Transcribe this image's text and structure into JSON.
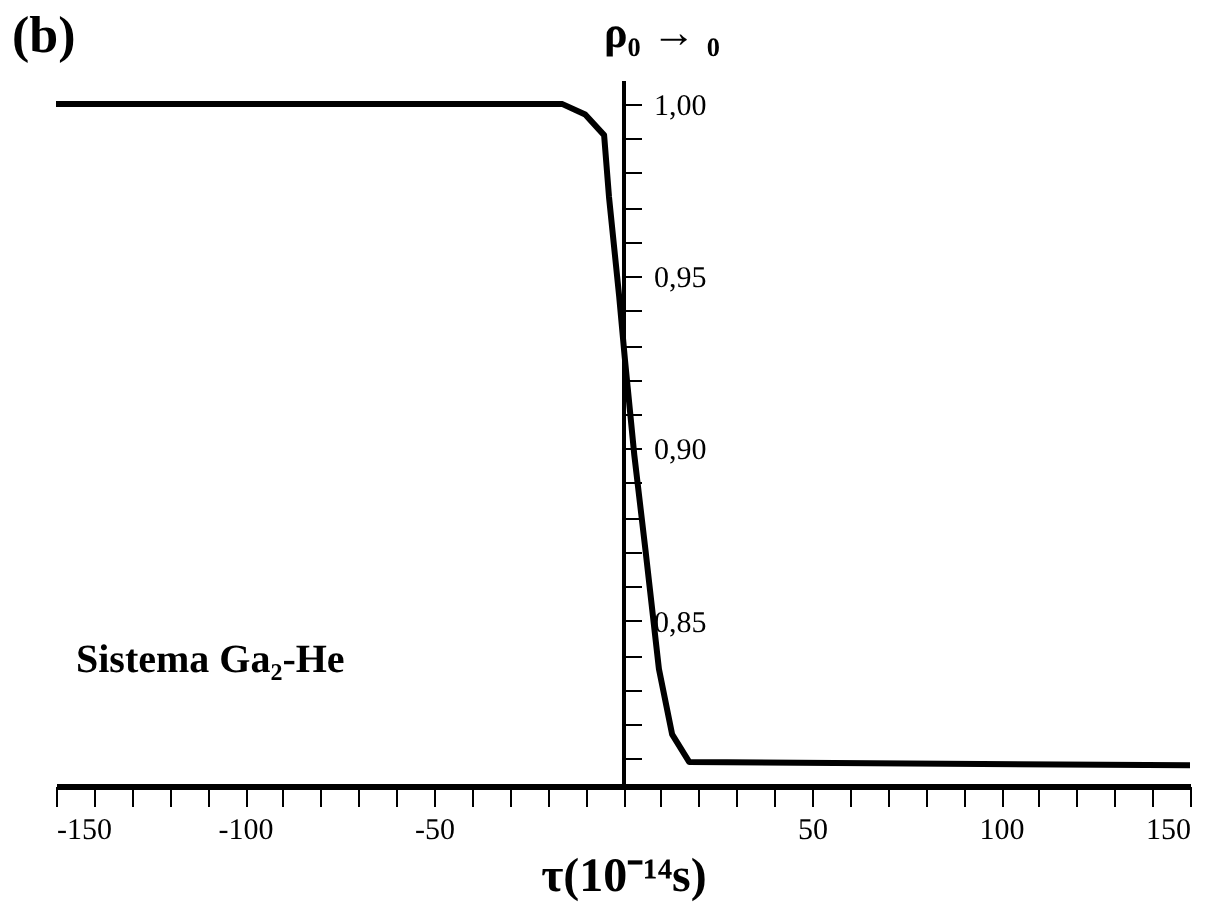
{
  "chart_data": {
    "type": "line",
    "title": "(b)",
    "xlabel": "τ(10⁻¹⁴s)",
    "ylabel": "ρ₀ → ₀",
    "annotations": [
      "Sistema Ga₂-He"
    ],
    "x": [
      -150,
      -16,
      -10,
      -5,
      -3.7,
      -1,
      0.5,
      3,
      6,
      9.5,
      13,
      17.5,
      150
    ],
    "series": [
      {
        "color": "#000000",
        "values": [
          1.0,
          1.0,
          0.997,
          0.991,
          0.973,
          0.944,
          0.926,
          0.898,
          0.87,
          0.836,
          0.817,
          0.809,
          0.808
        ]
      }
    ],
    "xlim": [
      -150,
      150
    ],
    "ylim": [
      0.802,
      1.007
    ],
    "xticks": [
      -150,
      {
        "value": -140,
        "label": null
      },
      {
        "value": -130,
        "label": null
      },
      {
        "value": -120,
        "label": null
      },
      {
        "value": -110,
        "label": null
      },
      -100,
      {
        "value": -90,
        "label": null
      },
      {
        "value": -80,
        "label": null
      },
      {
        "value": -70,
        "label": null
      },
      {
        "value": -60,
        "label": null
      },
      -50,
      {
        "value": -40,
        "label": null
      },
      {
        "value": -30,
        "label": null
      },
      {
        "value": -20,
        "label": null
      },
      {
        "value": -10,
        "label": null
      },
      {
        "value": 0,
        "label": null
      },
      {
        "value": 10,
        "label": null
      },
      {
        "value": 20,
        "label": null
      },
      {
        "value": 30,
        "label": null
      },
      {
        "value": 40,
        "label": null
      },
      50,
      {
        "value": 60,
        "label": null
      },
      {
        "value": 70,
        "label": null
      },
      {
        "value": 80,
        "label": null
      },
      {
        "value": 90,
        "label": null
      },
      100,
      {
        "value": 110,
        "label": null
      },
      {
        "value": 120,
        "label": null
      },
      {
        "value": 130,
        "label": null
      },
      {
        "value": 140,
        "label": null
      },
      150
    ],
    "yticks": [
      {
        "value": 0.81,
        "label": null
      },
      {
        "value": 0.82,
        "label": null
      },
      {
        "value": 0.83,
        "label": null
      },
      {
        "value": 0.84,
        "label": null
      },
      {
        "value": 0.85,
        "label": "0,85"
      },
      {
        "value": 0.86,
        "label": null
      },
      {
        "value": 0.87,
        "label": null
      },
      {
        "value": 0.88,
        "label": null
      },
      {
        "value": 0.89,
        "label": null
      },
      {
        "value": 0.9,
        "label": "0,90"
      },
      {
        "value": 0.91,
        "label": null
      },
      {
        "value": 0.92,
        "label": null
      },
      {
        "value": 0.93,
        "label": null
      },
      {
        "value": 0.94,
        "label": null
      },
      {
        "value": 0.95,
        "label": "0,95"
      },
      {
        "value": 0.96,
        "label": null
      },
      {
        "value": 0.97,
        "label": null
      },
      {
        "value": 0.98,
        "label": null
      },
      {
        "value": 0.99,
        "label": null
      },
      {
        "value": 1.0,
        "label": "1,00"
      }
    ],
    "grid": false,
    "legend": false,
    "marker": "none",
    "line_style": "solid"
  }
}
